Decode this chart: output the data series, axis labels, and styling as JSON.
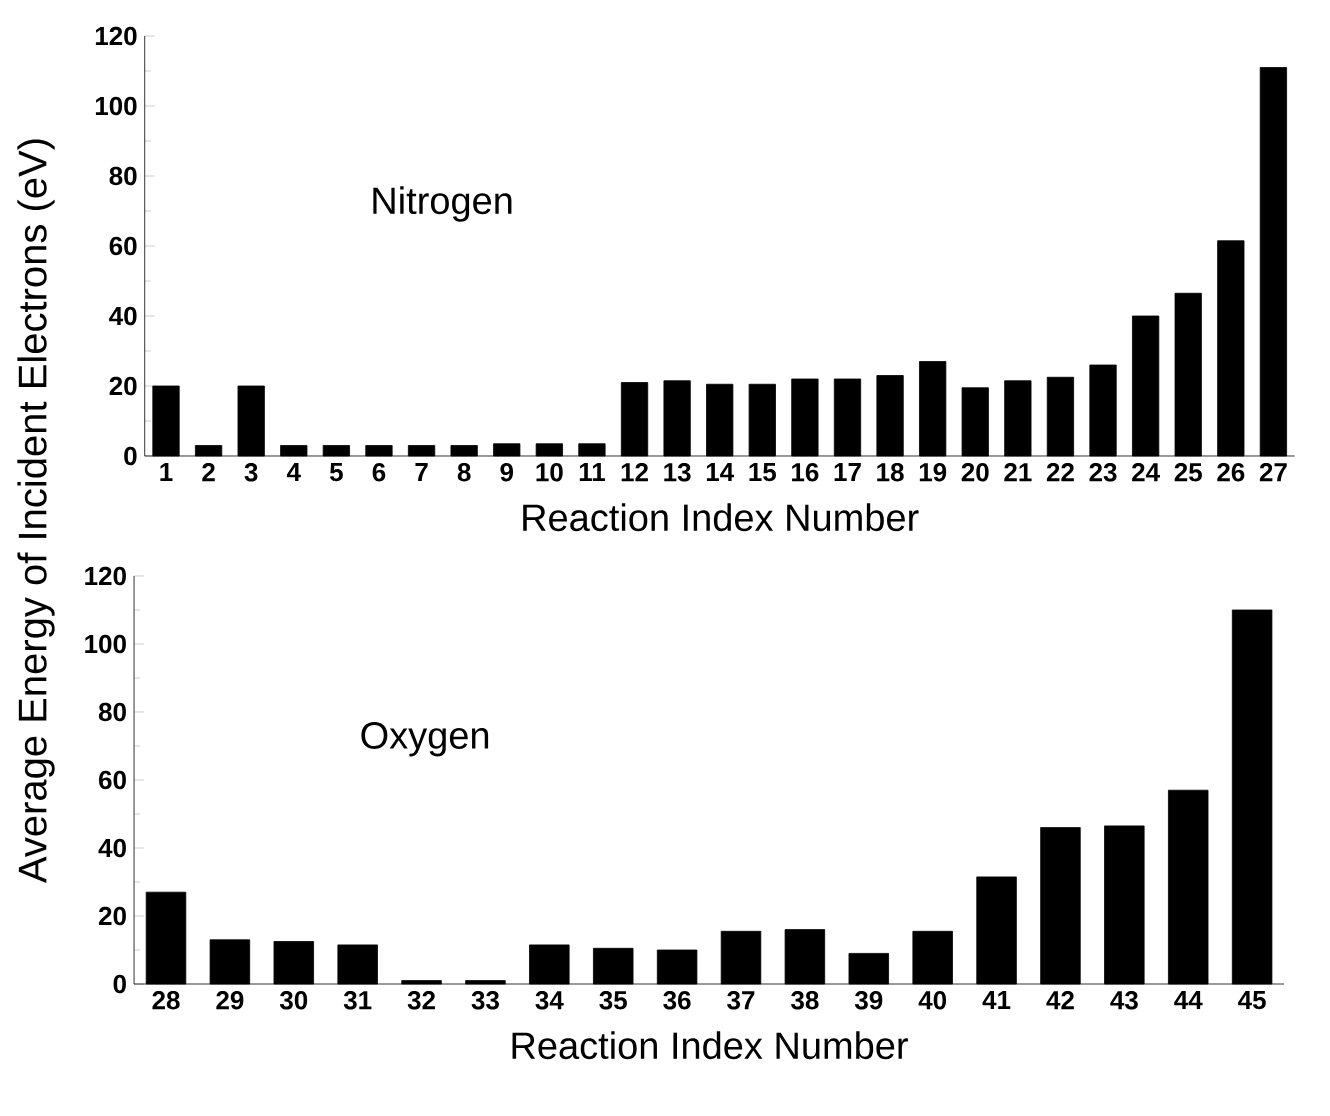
{
  "chart_data": [
    {
      "type": "bar",
      "ylabel": "Average Energy of Incident Electrons (eV)",
      "xlabel": "Reaction Index Number",
      "annotations": [
        "Nitrogen"
      ],
      "color": "#000000",
      "categories": [
        "1",
        "2",
        "3",
        "4",
        "5",
        "6",
        "7",
        "8",
        "9",
        "10",
        "11",
        "12",
        "13",
        "14",
        "15",
        "16",
        "17",
        "18",
        "19",
        "20",
        "21",
        "22",
        "23",
        "24",
        "25",
        "26",
        "27"
      ],
      "values": [
        20,
        3,
        20,
        3,
        3,
        3,
        3,
        3,
        3.5,
        3.5,
        3.5,
        21,
        21.5,
        20.5,
        20.5,
        22,
        22,
        23,
        27,
        19.5,
        21.5,
        22.5,
        26,
        40,
        46.5,
        61.5,
        111
      ],
      "ylim": [
        0,
        120
      ],
      "yticks": [
        0,
        20,
        40,
        60,
        80,
        100,
        120
      ]
    },
    {
      "type": "bar",
      "xlabel": "Reaction Index Number",
      "annotations": [
        "Oxygen"
      ],
      "color": "#000000",
      "categories": [
        "28",
        "29",
        "30",
        "31",
        "32",
        "33",
        "34",
        "35",
        "36",
        "37",
        "38",
        "39",
        "40",
        "41",
        "42",
        "43",
        "44",
        "45"
      ],
      "values": [
        27,
        13,
        12.5,
        11.5,
        1,
        1,
        11.5,
        10.5,
        10,
        15.5,
        16,
        9,
        15.5,
        31.5,
        46,
        46.5,
        57,
        110
      ],
      "ylim": [
        0,
        120
      ],
      "yticks": [
        0,
        20,
        40,
        60,
        80,
        100,
        120
      ]
    }
  ]
}
